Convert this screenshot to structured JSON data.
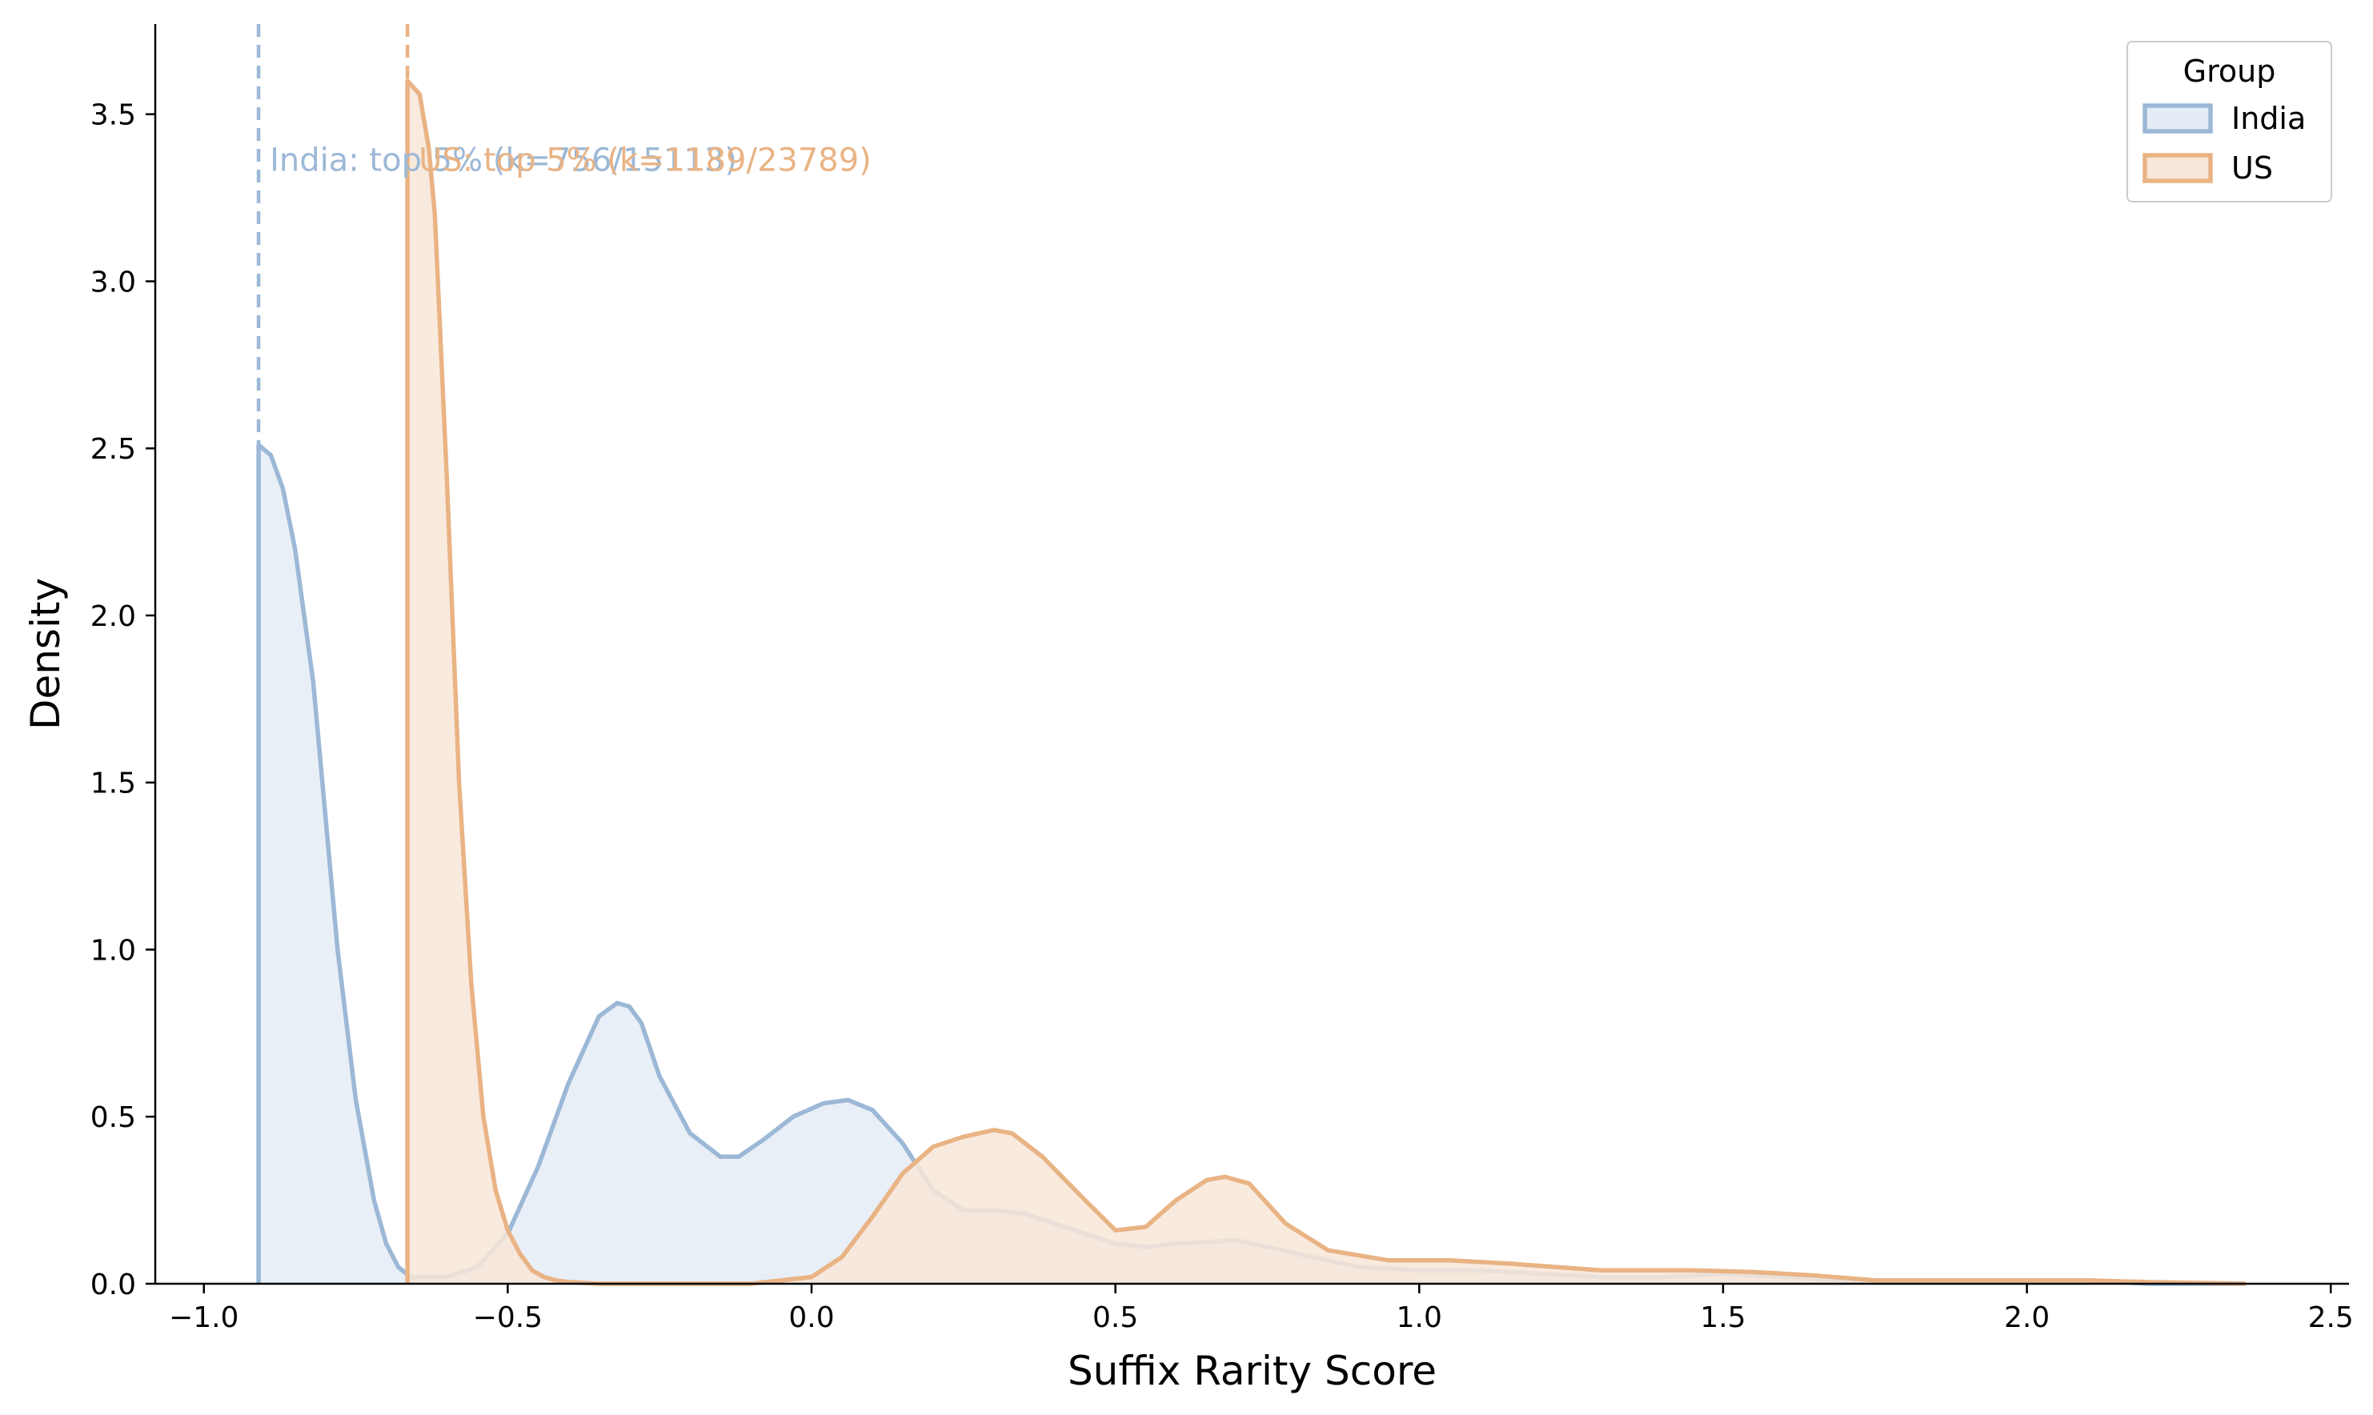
{
  "chart_data": {
    "type": "area",
    "title": "",
    "xlabel": "Suffix Rarity Score",
    "ylabel": "Density",
    "xlim": [
      -1.08,
      2.53
    ],
    "ylim": [
      0,
      3.77
    ],
    "xticks": [
      -1.0,
      -0.5,
      0.0,
      0.5,
      1.0,
      1.5,
      2.0,
      2.5
    ],
    "xtick_labels": [
      "−1.0",
      "−0.5",
      "0.0",
      "0.5",
      "1.0",
      "1.5",
      "2.0",
      "2.5"
    ],
    "yticks": [
      0.0,
      0.5,
      1.0,
      1.5,
      2.0,
      2.5,
      3.0,
      3.5
    ],
    "ytick_labels": [
      "0.0",
      "0.5",
      "1.0",
      "1.5",
      "2.0",
      "2.5",
      "3.0",
      "3.5"
    ],
    "grid": false,
    "legend": {
      "title": "Group",
      "placement": "top-right",
      "entries": [
        "India",
        "US"
      ]
    },
    "series": [
      {
        "name": "India",
        "color": "#9cb8d6",
        "fill": "#e5ecf5",
        "threshold_x": -0.91,
        "annotation": "India: top 5% (k=756/15113)",
        "x": [
          -0.91,
          -0.89,
          -0.87,
          -0.85,
          -0.82,
          -0.8,
          -0.78,
          -0.75,
          -0.72,
          -0.7,
          -0.68,
          -0.66,
          -0.6,
          -0.55,
          -0.5,
          -0.45,
          -0.4,
          -0.35,
          -0.32,
          -0.3,
          -0.28,
          -0.25,
          -0.2,
          -0.15,
          -0.12,
          -0.08,
          -0.03,
          0.02,
          0.06,
          0.1,
          0.15,
          0.2,
          0.25,
          0.3,
          0.35,
          0.4,
          0.5,
          0.55,
          0.6,
          0.7,
          0.8,
          0.9,
          1.0,
          1.1,
          1.2,
          1.3,
          1.4,
          1.5,
          1.6,
          1.7,
          1.8,
          1.9,
          2.0,
          2.1,
          2.2,
          2.36
        ],
        "y": [
          2.51,
          2.48,
          2.38,
          2.2,
          1.8,
          1.4,
          1.0,
          0.55,
          0.25,
          0.12,
          0.05,
          0.02,
          0.02,
          0.05,
          0.15,
          0.35,
          0.6,
          0.8,
          0.84,
          0.83,
          0.78,
          0.62,
          0.45,
          0.38,
          0.38,
          0.43,
          0.5,
          0.54,
          0.55,
          0.52,
          0.42,
          0.28,
          0.22,
          0.22,
          0.21,
          0.18,
          0.12,
          0.11,
          0.12,
          0.13,
          0.09,
          0.05,
          0.04,
          0.04,
          0.03,
          0.02,
          0.02,
          0.03,
          0.02,
          0.01,
          0.01,
          0.01,
          0.01,
          0.01,
          0.0,
          0.0
        ]
      },
      {
        "name": "US",
        "color": "#e9b384",
        "fill": "#f8e6d8",
        "threshold_x": -0.665,
        "annotation": "US: top 5% (k=1189/23789)",
        "x": [
          -0.665,
          -0.645,
          -0.63,
          -0.62,
          -0.6,
          -0.58,
          -0.56,
          -0.54,
          -0.52,
          -0.5,
          -0.48,
          -0.46,
          -0.44,
          -0.42,
          -0.4,
          -0.35,
          -0.3,
          -0.2,
          -0.1,
          0.0,
          0.05,
          0.1,
          0.15,
          0.2,
          0.25,
          0.3,
          0.33,
          0.38,
          0.45,
          0.5,
          0.55,
          0.6,
          0.65,
          0.68,
          0.72,
          0.78,
          0.85,
          0.95,
          1.05,
          1.15,
          1.3,
          1.45,
          1.55,
          1.65,
          1.75,
          1.9,
          2.0,
          2.1,
          2.2,
          2.36
        ],
        "y": [
          3.6,
          3.56,
          3.4,
          3.2,
          2.4,
          1.5,
          0.9,
          0.5,
          0.28,
          0.16,
          0.09,
          0.04,
          0.02,
          0.01,
          0.005,
          0.0,
          0.0,
          0.0,
          0.0,
          0.02,
          0.08,
          0.2,
          0.33,
          0.41,
          0.44,
          0.46,
          0.45,
          0.38,
          0.25,
          0.16,
          0.17,
          0.25,
          0.31,
          0.32,
          0.3,
          0.18,
          0.1,
          0.07,
          0.07,
          0.06,
          0.04,
          0.04,
          0.035,
          0.025,
          0.01,
          0.01,
          0.01,
          0.01,
          0.005,
          0.0
        ]
      }
    ]
  }
}
